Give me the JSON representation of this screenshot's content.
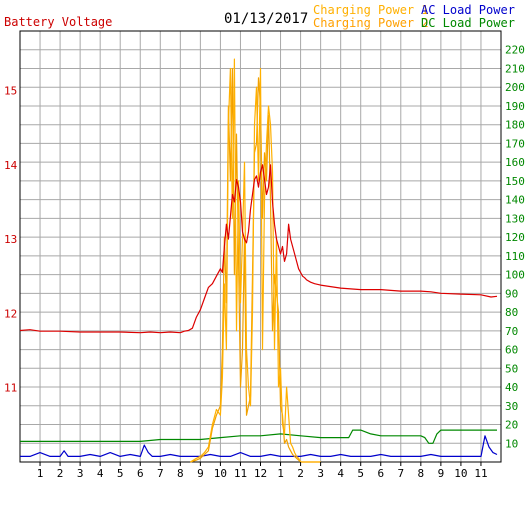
{
  "chart_data": {
    "type": "line",
    "date": "01/13/2017",
    "left_axis_label": "Battery Voltage",
    "left_axis": {
      "ticks": [
        11,
        12,
        13,
        14,
        15
      ],
      "range": [
        10.0,
        15.8
      ]
    },
    "right_axis": {
      "ticks": [
        10,
        20,
        30,
        40,
        50,
        60,
        70,
        80,
        90,
        100,
        110,
        120,
        130,
        140,
        150,
        160,
        170,
        180,
        190,
        200,
        210,
        220
      ],
      "range": [
        0,
        230
      ]
    },
    "x_axis": {
      "tick_labels": [
        "1",
        "2",
        "3",
        "4",
        "5",
        "6",
        "7",
        "8",
        "9",
        "10",
        "11",
        "12",
        "1",
        "2",
        "3",
        "4",
        "5",
        "6",
        "7",
        "8",
        "9",
        "10",
        "11"
      ],
      "range": [
        0,
        24
      ]
    },
    "grid": true,
    "legend": {
      "placement": "top",
      "entries": [
        {
          "label": "Charging Power 1",
          "color": "#ffb000"
        },
        {
          "label": "AC Load Power",
          "color": "#0000cc"
        },
        {
          "label": "Charging Power 2",
          "color": "#ffa000"
        },
        {
          "label": "DC Load Power",
          "color": "#008800"
        }
      ]
    },
    "colors": {
      "voltage": "#dd0000",
      "charge1": "#ffb000",
      "charge2": "#f0a000",
      "ac": "#0000cc",
      "dc": "#008800",
      "left_axis": "#cc0000",
      "right_axis": "#008800",
      "grid": "#a8a8a8"
    },
    "series": [
      {
        "name": "Battery Voltage",
        "axis": "left",
        "x": [
          0,
          0.5,
          1,
          2,
          3,
          4,
          5,
          6,
          6.5,
          7,
          7.5,
          8,
          8.2,
          8.4,
          8.6,
          8.8,
          9,
          9.2,
          9.4,
          9.6,
          9.8,
          10,
          10.1,
          10.2,
          10.3,
          10.4,
          10.5,
          10.6,
          10.7,
          10.8,
          10.9,
          11,
          11.1,
          11.2,
          11.3,
          11.4,
          11.5,
          11.6,
          11.7,
          11.8,
          11.9,
          12,
          12.1,
          12.2,
          12.3,
          12.4,
          12.5,
          12.6,
          12.7,
          12.8,
          12.9,
          13,
          13.1,
          13.2,
          13.3,
          13.4,
          13.5,
          13.6,
          13.7,
          13.8,
          13.9,
          14,
          14.1,
          14.2,
          14.3,
          14.5,
          14.7,
          15,
          15.5,
          16,
          16.5,
          17,
          18,
          19,
          20,
          20.5,
          21,
          22,
          23,
          23.5,
          23.8
        ],
        "y": [
          11.77,
          11.78,
          11.76,
          11.76,
          11.75,
          11.75,
          11.75,
          11.74,
          11.75,
          11.74,
          11.75,
          11.74,
          11.76,
          11.77,
          11.8,
          11.95,
          12.05,
          12.2,
          12.35,
          12.4,
          12.5,
          12.6,
          12.55,
          12.9,
          13.2,
          13.0,
          13.3,
          13.6,
          13.5,
          13.8,
          13.7,
          13.5,
          13.1,
          13.0,
          12.95,
          13.1,
          13.4,
          13.6,
          13.8,
          13.85,
          13.7,
          13.9,
          14.0,
          13.8,
          13.6,
          13.7,
          14.0,
          13.5,
          13.2,
          13.0,
          12.9,
          12.8,
          12.9,
          12.7,
          12.8,
          13.2,
          13.0,
          12.9,
          12.8,
          12.7,
          12.6,
          12.55,
          12.5,
          12.48,
          12.45,
          12.42,
          12.4,
          12.38,
          12.36,
          12.34,
          12.33,
          12.32,
          12.32,
          12.3,
          12.3,
          12.29,
          12.27,
          12.26,
          12.25,
          12.22,
          12.23
        ]
      },
      {
        "name": "Charging Power 1",
        "axis": "right",
        "x": [
          8.5,
          8.8,
          9.0,
          9.2,
          9.4,
          9.6,
          9.8,
          10.0,
          10.1,
          10.2,
          10.3,
          10.4,
          10.5,
          10.6,
          10.7,
          10.8,
          10.9,
          11.0,
          11.1,
          11.2,
          11.3,
          11.4,
          11.5,
          11.6,
          11.7,
          11.8,
          11.9,
          12.0,
          12.1,
          12.2,
          12.3,
          12.4,
          12.5,
          12.6,
          12.7,
          12.8,
          12.9,
          13.0,
          13.1,
          13.2,
          13.3,
          13.4,
          13.5,
          13.6,
          13.7,
          13.8,
          13.9,
          14.0,
          14.2,
          14.4,
          14.6,
          14.8,
          15.0
        ],
        "y": [
          0,
          2,
          3,
          5,
          8,
          20,
          28,
          25,
          45,
          95,
          60,
          180,
          210,
          130,
          215,
          70,
          150,
          85,
          120,
          160,
          60,
          40,
          30,
          80,
          180,
          200,
          150,
          210,
          60,
          140,
          170,
          190,
          180,
          155,
          60,
          120,
          40,
          50,
          20,
          15,
          40,
          25,
          10,
          8,
          5,
          3,
          2,
          0,
          0,
          0,
          0,
          0,
          0
        ]
      },
      {
        "name": "Charging Power 2",
        "axis": "right",
        "x": [
          8.5,
          8.8,
          9.0,
          9.2,
          9.4,
          9.6,
          9.8,
          10.0,
          10.1,
          10.2,
          10.3,
          10.4,
          10.5,
          10.6,
          10.7,
          10.8,
          10.9,
          11.0,
          11.1,
          11.2,
          11.3,
          11.4,
          11.5,
          11.6,
          11.7,
          11.8,
          11.9,
          12.0,
          12.1,
          12.2,
          12.3,
          12.4,
          12.5,
          12.6,
          12.7,
          12.8,
          12.9,
          13.0,
          13.1,
          13.2,
          13.3,
          13.4,
          13.5,
          13.6,
          13.7,
          13.8,
          13.9,
          14.0,
          14.2,
          14.4,
          14.6,
          14.8,
          15.0
        ],
        "y": [
          0,
          1,
          2,
          4,
          6,
          18,
          25,
          30,
          60,
          120,
          85,
          190,
          150,
          210,
          100,
          175,
          110,
          40,
          60,
          120,
          25,
          30,
          35,
          100,
          165,
          170,
          205,
          190,
          130,
          165,
          150,
          185,
          140,
          70,
          100,
          90,
          80,
          30,
          25,
          10,
          12,
          8,
          6,
          4,
          3,
          2,
          1,
          0,
          0,
          0,
          0,
          0,
          0
        ]
      },
      {
        "name": "AC Load Power",
        "axis": "right",
        "x": [
          0,
          0.5,
          1,
          1.5,
          2,
          2.2,
          2.4,
          3,
          3.5,
          4,
          4.5,
          5,
          5.5,
          6,
          6.2,
          6.4,
          6.6,
          7,
          7.5,
          8,
          8.5,
          9,
          9.5,
          10,
          10.5,
          11,
          11.5,
          12,
          12.5,
          13,
          13.5,
          14,
          14.5,
          15,
          15.5,
          16,
          16.5,
          17,
          17.5,
          18,
          18.5,
          19,
          19.5,
          20,
          20.5,
          21,
          21.5,
          22,
          22.2,
          22.4,
          22.6,
          22.8,
          23,
          23.2,
          23.4,
          23.6,
          23.8
        ],
        "y": [
          3,
          3,
          5,
          3,
          3,
          6,
          3,
          3,
          4,
          3,
          5,
          3,
          4,
          3,
          9,
          5,
          3,
          3,
          4,
          3,
          3,
          3,
          4,
          3,
          3,
          5,
          3,
          3,
          4,
          3,
          3,
          3,
          4,
          3,
          3,
          4,
          3,
          3,
          3,
          4,
          3,
          3,
          3,
          3,
          4,
          3,
          3,
          3,
          3,
          3,
          3,
          3,
          3,
          14,
          8,
          5,
          4
        ]
      },
      {
        "name": "DC Load Power",
        "axis": "right",
        "x": [
          0,
          1,
          2,
          3,
          4,
          5,
          6,
          7,
          8,
          9,
          10,
          11,
          12,
          13,
          14,
          15,
          16,
          16.4,
          16.6,
          17,
          17.5,
          18,
          18.5,
          19,
          19.5,
          20,
          20.2,
          20.4,
          20.6,
          20.8,
          21,
          21.5,
          22,
          22.5,
          23,
          23.5,
          23.8
        ],
        "y": [
          11,
          11,
          11,
          11,
          11,
          11,
          11,
          12,
          12,
          12,
          13,
          14,
          14,
          15,
          14,
          13,
          13,
          13,
          17,
          17,
          15,
          14,
          14,
          14,
          14,
          14,
          13,
          10,
          10,
          15,
          17,
          17,
          17,
          17,
          17,
          17,
          17
        ]
      }
    ]
  }
}
